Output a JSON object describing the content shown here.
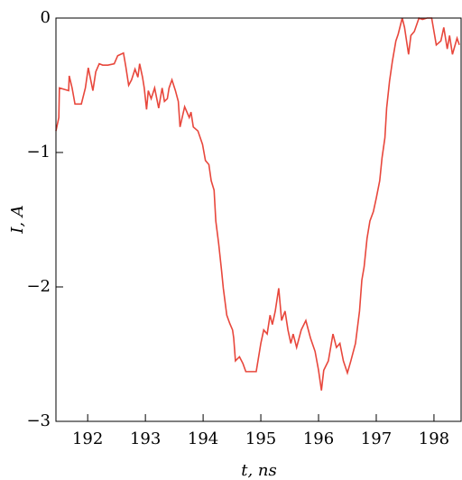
{
  "chart_data": {
    "type": "line",
    "xlabel": "t, ns",
    "ylabel": "I, A",
    "xlim": [
      191.45,
      198.47
    ],
    "ylim": [
      -3,
      0
    ],
    "xticks": [
      192,
      193,
      194,
      195,
      196,
      197,
      198
    ],
    "yticks": [
      {
        "value": 0,
        "label": "0"
      },
      {
        "value": -1,
        "label": "−1"
      },
      {
        "value": -2,
        "label": "−2"
      },
      {
        "value": -3,
        "label": "−3"
      }
    ],
    "series": [
      {
        "color": "#e8473c",
        "x": [
          191.45,
          191.5,
          191.51,
          191.67,
          191.68,
          191.73,
          191.78,
          191.89,
          191.96,
          192.01,
          192.09,
          192.14,
          192.2,
          192.26,
          192.35,
          192.46,
          192.52,
          192.62,
          192.66,
          192.71,
          192.76,
          192.82,
          192.87,
          192.9,
          192.95,
          192.98,
          193.02,
          193.05,
          193.1,
          193.16,
          193.23,
          193.29,
          193.33,
          193.38,
          193.41,
          193.46,
          193.52,
          193.57,
          193.6,
          193.68,
          193.76,
          193.79,
          193.83,
          193.91,
          193.99,
          194.04,
          194.1,
          194.14,
          194.19,
          194.22,
          194.27,
          194.32,
          194.35,
          194.41,
          194.46,
          194.51,
          194.53,
          194.56,
          194.63,
          194.69,
          194.74,
          194.92,
          195.0,
          195.05,
          195.11,
          195.16,
          195.2,
          195.25,
          195.31,
          195.36,
          195.42,
          195.47,
          195.52,
          195.56,
          195.62,
          195.7,
          195.78,
          195.86,
          195.94,
          196.0,
          196.05,
          196.09,
          196.17,
          196.25,
          196.31,
          196.37,
          196.43,
          196.5,
          196.56,
          196.64,
          196.71,
          196.75,
          196.79,
          196.84,
          196.89,
          196.95,
          197.0,
          197.06,
          197.1,
          197.15,
          197.18,
          197.23,
          197.28,
          197.34,
          197.38,
          197.45,
          197.49,
          197.56,
          197.6,
          197.66,
          197.74,
          197.8,
          197.88,
          197.96,
          198.0,
          198.04,
          198.12,
          198.17,
          198.23,
          198.27,
          198.32,
          198.4,
          198.44
        ],
        "values": [
          -0.84,
          -0.74,
          -0.52,
          -0.54,
          -0.43,
          -0.52,
          -0.64,
          -0.64,
          -0.52,
          -0.37,
          -0.54,
          -0.4,
          -0.34,
          -0.35,
          -0.35,
          -0.34,
          -0.28,
          -0.26,
          -0.36,
          -0.5,
          -0.46,
          -0.38,
          -0.44,
          -0.34,
          -0.44,
          -0.52,
          -0.68,
          -0.54,
          -0.6,
          -0.52,
          -0.67,
          -0.52,
          -0.62,
          -0.6,
          -0.52,
          -0.46,
          -0.54,
          -0.62,
          -0.81,
          -0.66,
          -0.74,
          -0.7,
          -0.81,
          -0.84,
          -0.94,
          -1.06,
          -1.09,
          -1.21,
          -1.28,
          -1.51,
          -1.68,
          -1.88,
          -2.01,
          -2.21,
          -2.27,
          -2.32,
          -2.38,
          -2.55,
          -2.52,
          -2.57,
          -2.63,
          -2.63,
          -2.42,
          -2.32,
          -2.35,
          -2.21,
          -2.28,
          -2.18,
          -2.01,
          -2.25,
          -2.18,
          -2.32,
          -2.42,
          -2.35,
          -2.45,
          -2.32,
          -2.25,
          -2.38,
          -2.48,
          -2.62,
          -2.77,
          -2.62,
          -2.55,
          -2.35,
          -2.45,
          -2.42,
          -2.55,
          -2.64,
          -2.55,
          -2.42,
          -2.18,
          -1.95,
          -1.85,
          -1.64,
          -1.51,
          -1.44,
          -1.34,
          -1.21,
          -1.04,
          -0.89,
          -0.67,
          -0.47,
          -0.32,
          -0.17,
          -0.12,
          0,
          -0.07,
          -0.27,
          -0.13,
          -0.1,
          0,
          -0.01,
          0,
          0,
          -0.1,
          -0.2,
          -0.17,
          -0.07,
          -0.23,
          -0.13,
          -0.27,
          -0.15,
          -0.2
        ]
      }
    ]
  }
}
